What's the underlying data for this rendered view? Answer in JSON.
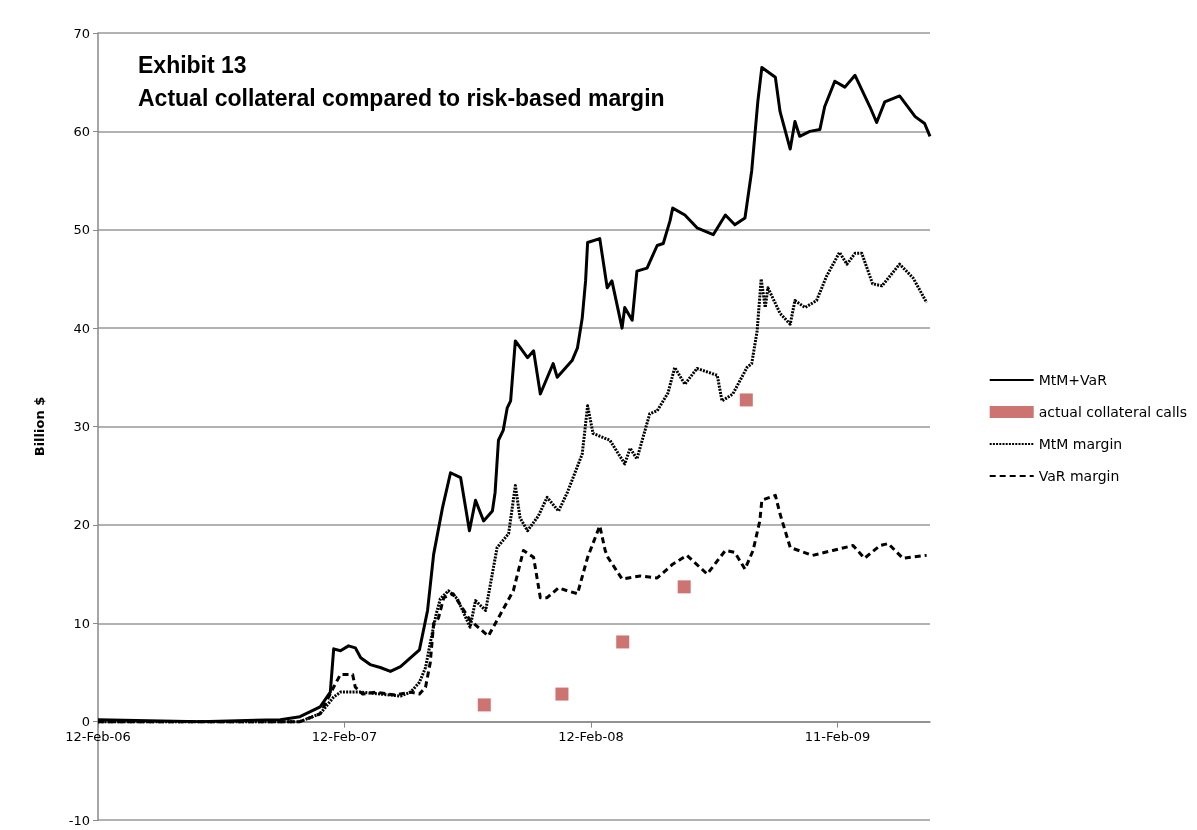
{
  "chart_data": {
    "type": "line",
    "title": "Exhibit 13",
    "subtitle": "Actual collateral compared to risk-based margin",
    "ylabel": "Billion $",
    "xlim": [
      "2006-02-12",
      "2009-06-28"
    ],
    "xticks": [
      {
        "value": "2006-02-12",
        "label": "12-Feb-06"
      },
      {
        "value": "2007-02-12",
        "label": "12-Feb-07"
      },
      {
        "value": "2008-02-12",
        "label": "12-Feb-08"
      },
      {
        "value": "2009-02-11",
        "label": "11-Feb-09"
      }
    ],
    "ylim": [
      -10,
      70
    ],
    "yticks": [
      -10,
      0,
      10,
      20,
      30,
      40,
      50,
      60,
      70
    ],
    "grid": "y",
    "legend": "right",
    "series": [
      {
        "name": "MtM+VaR",
        "color": "#000000",
        "line_style": "solid",
        "marker": "none",
        "x": [
          "2006-02-12",
          "2006-07-13",
          "2006-11-09",
          "2006-12-08",
          "2007-01-07",
          "2007-01-22",
          "2007-01-27",
          "2007-02-06",
          "2007-02-18",
          "2007-02-28",
          "2007-03-08",
          "2007-03-22",
          "2007-04-06",
          "2007-04-21",
          "2007-05-06",
          "2007-05-21",
          "2007-06-03",
          "2007-06-15",
          "2007-06-24",
          "2007-07-07",
          "2007-07-19",
          "2007-08-03",
          "2007-08-16",
          "2007-08-25",
          "2007-09-06",
          "2007-09-19",
          "2007-09-23",
          "2007-09-28",
          "2007-10-05",
          "2007-10-11",
          "2007-10-16",
          "2007-10-23",
          "2007-11-10",
          "2007-11-19",
          "2007-11-29",
          "2007-12-18",
          "2007-12-24",
          "2008-01-15",
          "2008-01-23",
          "2008-01-30",
          "2008-02-04",
          "2008-02-07",
          "2008-02-25",
          "2008-03-07",
          "2008-03-14",
          "2008-03-29",
          "2008-04-02",
          "2008-04-13",
          "2008-04-20",
          "2008-05-05",
          "2008-05-20",
          "2008-05-29",
          "2008-06-08",
          "2008-06-12",
          "2008-06-30",
          "2008-07-18",
          "2008-08-11",
          "2008-08-29",
          "2008-09-12",
          "2008-09-27",
          "2008-10-07",
          "2008-10-16",
          "2008-10-22",
          "2008-11-11",
          "2008-11-18",
          "2008-12-03",
          "2008-12-10",
          "2008-12-17",
          "2009-01-01",
          "2009-01-16",
          "2009-01-23",
          "2009-02-07",
          "2009-02-22",
          "2009-03-09",
          "2009-03-31",
          "2009-04-10",
          "2009-04-22",
          "2009-05-14",
          "2009-06-06",
          "2009-06-20",
          "2009-06-28"
        ],
        "values": [
          0.2,
          0,
          0.2,
          0.5,
          1.5,
          3,
          7.4,
          7.2,
          7.7,
          7.5,
          6.5,
          5.8,
          5.5,
          5.1,
          5.6,
          6.5,
          7.3,
          11.3,
          17,
          21.7,
          25.3,
          24.8,
          19.4,
          22.5,
          20.4,
          21.4,
          23.3,
          28.6,
          29.6,
          31.9,
          32.6,
          38.7,
          37,
          37.7,
          33.3,
          36.4,
          35,
          36.7,
          38,
          41,
          44.8,
          48.7,
          49.1,
          44.1,
          44.8,
          40,
          42.1,
          40.8,
          45.8,
          46.1,
          48.4,
          48.6,
          50.9,
          52.2,
          51.5,
          50.2,
          49.5,
          51.5,
          50.5,
          51.2,
          56,
          63,
          66.5,
          65.5,
          62,
          58.2,
          61,
          59.5,
          60,
          60.2,
          62.5,
          65.1,
          64.5,
          65.7,
          62.5,
          60.9,
          63,
          63.6,
          61.5,
          60.8,
          59.5
        ]
      },
      {
        "name": "actual collateral calls",
        "type": "scatter",
        "color": "#c0504d",
        "marker": "square",
        "x": [
          "2007-09-07",
          "2007-12-31",
          "2008-03-30",
          "2008-06-29",
          "2008-09-29"
        ],
        "values": [
          1.7,
          2.8,
          8.1,
          13.7,
          32.7
        ]
      },
      {
        "name": "MtM margin",
        "color": "#000000",
        "line_style": "dotted",
        "marker": "none",
        "x": [
          "2006-02-12",
          "2006-07-13",
          "2006-12-08",
          "2007-01-07",
          "2007-01-27",
          "2007-02-06",
          "2007-02-21",
          "2007-03-08",
          "2007-04-06",
          "2007-05-06",
          "2007-05-21",
          "2007-06-03",
          "2007-06-12",
          "2007-06-19",
          "2007-06-28",
          "2007-07-04",
          "2007-07-16",
          "2007-07-29",
          "2007-08-17",
          "2007-08-25",
          "2007-09-09",
          "2007-09-26",
          "2007-10-13",
          "2007-10-23",
          "2007-10-30",
          "2007-11-10",
          "2007-11-26",
          "2007-12-09",
          "2007-12-26",
          "2008-01-08",
          "2008-01-30",
          "2008-02-07",
          "2008-02-15",
          "2008-03-11",
          "2008-04-02",
          "2008-04-10",
          "2008-04-20",
          "2008-05-09",
          "2008-05-20",
          "2008-06-05",
          "2008-06-15",
          "2008-06-30",
          "2008-07-18",
          "2008-08-17",
          "2008-08-24",
          "2008-09-09",
          "2008-09-30",
          "2008-10-07",
          "2008-10-15",
          "2008-10-21",
          "2008-10-27",
          "2008-10-31",
          "2008-11-18",
          "2008-12-03",
          "2008-12-10",
          "2008-12-25",
          "2009-01-11",
          "2009-01-26",
          "2009-02-14",
          "2009-02-25",
          "2009-03-09",
          "2009-03-19",
          "2009-04-04",
          "2009-04-18",
          "2009-05-14",
          "2009-06-03",
          "2009-06-23"
        ],
        "values": [
          0,
          0,
          0,
          0.8,
          2.5,
          3,
          3,
          3,
          2.8,
          2.6,
          3,
          4,
          5.5,
          8,
          11,
          12.5,
          13.3,
          12.5,
          9.6,
          12.3,
          11.3,
          17.7,
          19.1,
          24,
          20.7,
          19.4,
          20.9,
          22.8,
          21.4,
          23.3,
          27.2,
          32.1,
          29.3,
          28.6,
          26.2,
          27.8,
          26.7,
          31.3,
          31.6,
          33.4,
          36,
          34.3,
          35.9,
          35.2,
          32.6,
          33.3,
          36,
          36.4,
          39.7,
          45,
          42.1,
          44.1,
          41.5,
          40.4,
          42.8,
          42.1,
          42.8,
          45.3,
          47.7,
          46.5,
          47.6,
          47.6,
          44.5,
          44.3,
          46.5,
          45.1,
          42.6
        ]
      },
      {
        "name": "VaR margin",
        "color": "#000000",
        "line_style": "dashed",
        "marker": "none",
        "x": [
          "2006-02-12",
          "2006-07-13",
          "2006-12-08",
          "2007-01-07",
          "2007-01-27",
          "2007-02-06",
          "2007-02-24",
          "2007-02-28",
          "2007-03-11",
          "2007-03-30",
          "2007-04-28",
          "2007-05-21",
          "2007-06-03",
          "2007-06-12",
          "2007-06-19",
          "2007-06-24",
          "2007-07-01",
          "2007-07-09",
          "2007-07-23",
          "2007-08-17",
          "2007-09-13",
          "2007-09-26",
          "2007-10-20",
          "2007-11-04",
          "2007-11-19",
          "2007-11-29",
          "2007-12-09",
          "2007-12-26",
          "2008-01-08",
          "2008-01-23",
          "2008-02-07",
          "2008-02-25",
          "2008-03-04",
          "2008-03-08",
          "2008-03-29",
          "2008-04-25",
          "2008-05-20",
          "2008-06-12",
          "2008-07-03",
          "2008-08-02",
          "2008-08-29",
          "2008-09-12",
          "2008-09-27",
          "2008-10-09",
          "2008-10-19",
          "2008-10-22",
          "2008-11-11",
          "2008-11-18",
          "2008-12-03",
          "2009-01-05",
          "2009-02-04",
          "2009-03-06",
          "2009-03-23",
          "2009-04-15",
          "2009-04-27",
          "2009-05-19",
          "2009-06-23"
        ],
        "values": [
          0,
          0,
          0,
          0.8,
          3.5,
          4.8,
          4.8,
          3.5,
          2.8,
          3,
          2.7,
          3,
          2.8,
          3.5,
          6,
          10,
          10.5,
          12.6,
          13,
          10.3,
          8.7,
          10.3,
          13.3,
          17.4,
          16.7,
          12.6,
          12.6,
          13.6,
          13.3,
          13,
          16.7,
          19.9,
          17.4,
          16.7,
          14.5,
          14.8,
          14.6,
          16,
          16.9,
          15,
          17.4,
          17.2,
          15.5,
          17.4,
          20.4,
          22.5,
          23,
          21.1,
          17.7,
          16.9,
          17.4,
          17.9,
          16.6,
          17.9,
          18.1,
          16.6,
          16.9
        ]
      }
    ]
  }
}
